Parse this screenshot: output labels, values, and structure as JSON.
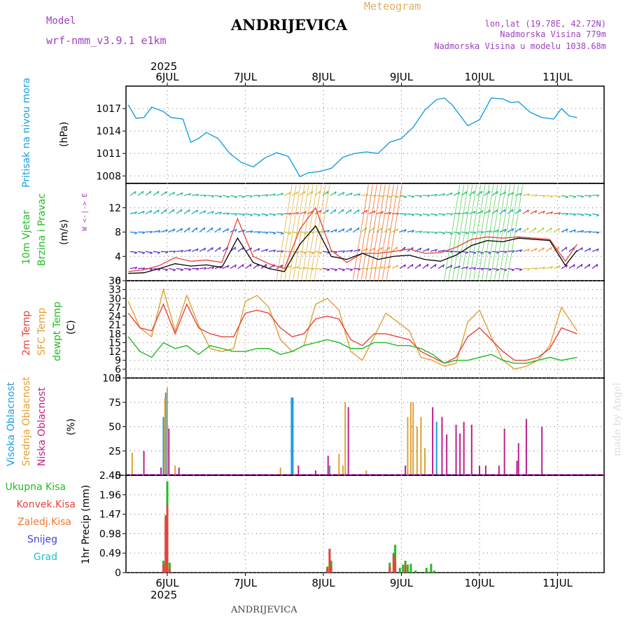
{
  "header": {
    "meteogram_label": "Meteogram",
    "station": "ANDRIJEVICA",
    "model_label": "Model",
    "model_name": "wrf-nmm_v3.9.1  e1km",
    "location_coords": "lon,lat (19.78E, 42.72N)",
    "elevation": "Nadmorska Visina 779m",
    "model_elevation": "Nadmorska Visina u modelu 1038.68m",
    "footer_station": "ANDRIJEVICA",
    "watermark": "made by Angel"
  },
  "time_axis": {
    "year": "2025",
    "day_labels": [
      "6JUL",
      "7JUL",
      "8JUL",
      "9JUL",
      "10JUL",
      "11JUL"
    ]
  },
  "colors": {
    "pressure": "#1a9ee0",
    "wind_speed": "#000000",
    "wind_gust": "#e8433a",
    "temp_2m": "#e8433a",
    "temp_sfc": "#e0a030",
    "temp_dew": "#22bb22",
    "cloud_high": "#1a9ee0",
    "cloud_mid": "#e0a030",
    "cloud_low": "#c0208a",
    "precip_total": "#22bb22",
    "precip_conv": "#e8433a",
    "precip_frozen": "#f07830",
    "precip_snow": "#4040e0",
    "precip_hail": "#20c0c0",
    "wind_label": "#22bb22",
    "wind_label2": "#a040c0"
  },
  "panels": {
    "pressure": {
      "ylabel1": "Pritisak na nivou mora",
      "unit": "(hPa)"
    },
    "wind": {
      "ylabel1": "10m Vjetar",
      "ylabel2": "Brzina i Pravac",
      "unit": "(m/s)",
      "compass": "W <-|-> E"
    },
    "temperature": {
      "ylabel1": "2m Temp",
      "ylabel2": "SFC Temp",
      "ylabel3": "dewpt Temp",
      "unit": "(C)"
    },
    "clouds": {
      "ylabel1": "Visoka Oblacnost",
      "ylabel2": "Srednja Oblacnost",
      "ylabel3": "Niska Oblacnost",
      "unit": "(%)"
    },
    "precip": {
      "unit": "1hr Precip (mm)",
      "legend": [
        "Ukupna Kisa",
        "Konvek.Kisa",
        "Zaledj.Kisa",
        "Snijeg",
        "Grad"
      ]
    }
  },
  "chart_data": [
    {
      "type": "line",
      "title": "",
      "ylabel": "Pritisak na nivou mora (hPa)",
      "yticks": [
        1008,
        1011,
        1014,
        1017
      ],
      "ylim": [
        1007,
        1020
      ],
      "x_days": [
        0,
        0.1,
        0.2,
        0.3,
        0.45,
        0.55,
        0.7,
        0.8,
        0.9,
        1.0,
        1.15,
        1.3,
        1.45,
        1.6,
        1.75,
        1.9,
        2.05,
        2.2,
        2.3,
        2.45,
        2.6,
        2.75,
        2.9,
        3.05,
        3.2,
        3.35,
        3.5,
        3.65,
        3.8,
        3.95,
        4.05,
        4.15,
        4.25,
        4.35,
        4.5,
        4.65,
        4.8,
        4.9,
        5.0,
        5.15,
        5.3,
        5.45,
        5.55,
        5.65,
        5.75
      ],
      "series": [
        {
          "values": [
            1017.5,
            1015.7,
            1015.8,
            1017.2,
            1016.6,
            1015.8,
            1015.6,
            1012.5,
            1013.0,
            1013.8,
            1013.0,
            1011.0,
            1009.8,
            1009.2,
            1010.4,
            1011.1,
            1010.6,
            1007.9,
            1008.4,
            1008.6,
            1009.0,
            1010.5,
            1011.0,
            1011.2,
            1011.0,
            1012.5,
            1013.0,
            1014.5,
            1016.8,
            1018.2,
            1018.4,
            1017.5,
            1016.1,
            1014.7,
            1015.5,
            1018.4,
            1018.3,
            1017.8,
            1017.9,
            1016.5,
            1015.8,
            1015.6,
            1017.0,
            1016.0,
            1015.8
          ]
        }
      ]
    },
    {
      "type": "line",
      "ylabel": "10m Vjetar Brzina i Pravac (m/s)",
      "yticks": [
        0,
        4,
        8,
        12
      ],
      "ylim": [
        0,
        16
      ],
      "x_days": [
        0,
        0.2,
        0.4,
        0.6,
        0.8,
        1.0,
        1.2,
        1.4,
        1.6,
        1.8,
        2.0,
        2.2,
        2.4,
        2.6,
        2.8,
        3.0,
        3.2,
        3.4,
        3.6,
        3.8,
        4.0,
        4.2,
        4.4,
        4.6,
        4.8,
        5.0,
        5.2,
        5.4,
        5.6,
        5.75
      ],
      "series": [
        {
          "name": "speed",
          "values": [
            1.2,
            1.3,
            2.0,
            2.8,
            2.4,
            2.6,
            2.2,
            7.0,
            3.0,
            2.0,
            1.5,
            6.0,
            9.0,
            4.0,
            3.5,
            4.5,
            3.5,
            4.0,
            4.2,
            3.5,
            3.2,
            4.2,
            5.8,
            6.6,
            6.4,
            7.0,
            6.8,
            6.6,
            2.5,
            5.0
          ]
        },
        {
          "name": "gust",
          "values": [
            1.5,
            1.8,
            2.5,
            3.8,
            3.2,
            3.4,
            3.0,
            10.2,
            4.0,
            2.8,
            2.0,
            8.5,
            12.0,
            5.0,
            3.0,
            4.5,
            4.5,
            4.8,
            5.2,
            4.5,
            4.6,
            5.5,
            6.8,
            7.2,
            7.0,
            7.2,
            7.0,
            6.8,
            3.2,
            6.0
          ]
        }
      ]
    },
    {
      "type": "line",
      "ylabel": "Temperature (C)",
      "yticks": [
        3,
        6,
        9,
        12,
        15,
        18,
        21,
        24,
        27,
        30,
        33,
        36
      ],
      "ylim": [
        3,
        36
      ],
      "x_days": [
        0,
        0.15,
        0.3,
        0.45,
        0.6,
        0.75,
        0.9,
        1.05,
        1.2,
        1.35,
        1.5,
        1.65,
        1.8,
        1.95,
        2.1,
        2.25,
        2.4,
        2.55,
        2.7,
        2.85,
        3.0,
        3.15,
        3.3,
        3.45,
        3.6,
        3.75,
        3.9,
        4.05,
        4.2,
        4.35,
        4.5,
        4.65,
        4.8,
        4.95,
        5.1,
        5.25,
        5.4,
        5.55,
        5.75
      ],
      "series": [
        {
          "name": "2m",
          "values": [
            25,
            20,
            19,
            28,
            18,
            28,
            20,
            18,
            17,
            17,
            25,
            26,
            25,
            20,
            17,
            18,
            23,
            24,
            23,
            16,
            14,
            18,
            18,
            17,
            16,
            12,
            10,
            8,
            10,
            17,
            20,
            16,
            12,
            9,
            9,
            10,
            13,
            20,
            18
          ]
        },
        {
          "name": "sfc",
          "values": [
            29,
            20,
            17,
            33,
            19,
            31,
            21,
            13,
            12,
            13,
            29,
            31,
            27,
            16,
            12,
            14,
            28,
            30,
            26,
            12,
            9,
            17,
            25,
            22,
            19,
            10,
            9,
            7,
            8,
            22,
            26,
            17,
            9,
            6,
            7,
            9,
            14,
            27,
            19
          ]
        },
        {
          "name": "dew",
          "values": [
            17,
            12,
            10,
            15,
            13,
            14,
            11,
            14,
            13,
            12,
            12,
            13,
            13,
            11,
            12,
            14,
            15,
            16,
            15,
            13,
            13,
            15,
            15,
            14,
            14,
            13,
            11,
            8,
            9,
            9,
            10,
            11,
            9,
            8,
            8,
            9,
            10,
            9,
            10
          ]
        }
      ]
    },
    {
      "type": "bar",
      "ylabel": "Oblacnost (%)",
      "yticks": [
        0,
        25,
        50,
        75,
        100
      ],
      "ylim": [
        0,
        100
      ],
      "series": [
        {
          "name": "high",
          "points": [
            [
              0.45,
              60
            ],
            [
              0.48,
              85
            ],
            [
              0.5,
              82
            ],
            [
              2.1,
              80
            ],
            [
              2.58,
              10
            ],
            [
              3.95,
              55
            ]
          ]
        },
        {
          "name": "mid",
          "points": [
            [
              0.05,
              23
            ],
            [
              0.47,
              80
            ],
            [
              0.5,
              90
            ],
            [
              0.6,
              10
            ],
            [
              1.95,
              8
            ],
            [
              2.75,
              10
            ],
            [
              2.7,
              22
            ],
            [
              2.78,
              75
            ],
            [
              3.05,
              5
            ],
            [
              3.58,
              60
            ],
            [
              3.62,
              75
            ],
            [
              3.65,
              75
            ],
            [
              3.7,
              50
            ],
            [
              3.75,
              60
            ],
            [
              3.8,
              28
            ]
          ]
        },
        {
          "name": "low",
          "points": [
            [
              0.2,
              25
            ],
            [
              0.42,
              8
            ],
            [
              0.52,
              48
            ],
            [
              0.65,
              8
            ],
            [
              2.18,
              10
            ],
            [
              2.4,
              5
            ],
            [
              2.56,
              20
            ],
            [
              2.82,
              70
            ],
            [
              3.55,
              10
            ],
            [
              3.9,
              70
            ],
            [
              4.02,
              60
            ],
            [
              4.08,
              42
            ],
            [
              4.2,
              52
            ],
            [
              4.25,
              43
            ],
            [
              4.3,
              55
            ],
            [
              4.4,
              52
            ],
            [
              4.5,
              10
            ],
            [
              4.58,
              10
            ],
            [
              4.75,
              10
            ],
            [
              4.82,
              48
            ],
            [
              4.98,
              15
            ],
            [
              5.0,
              33
            ],
            [
              5.1,
              58
            ],
            [
              5.3,
              50
            ]
          ]
        }
      ]
    },
    {
      "type": "bar",
      "ylabel": "1hr Precip (mm)",
      "yticks": [
        0,
        0.49,
        0.98,
        1.47,
        1.96,
        2.45
      ],
      "ylim": [
        0,
        2.45
      ],
      "series": [
        {
          "name": "total",
          "points": [
            [
              0.45,
              0.3
            ],
            [
              0.48,
              1.45
            ],
            [
              0.5,
              2.3
            ],
            [
              0.53,
              0.25
            ],
            [
              2.55,
              0.15
            ],
            [
              2.58,
              0.6
            ],
            [
              2.6,
              0.3
            ],
            [
              3.35,
              0.25
            ],
            [
              3.4,
              0.5
            ],
            [
              3.42,
              0.7
            ],
            [
              3.48,
              0.12
            ],
            [
              3.52,
              0.2
            ],
            [
              3.55,
              0.3
            ],
            [
              3.58,
              0.2
            ],
            [
              3.62,
              0.22
            ],
            [
              3.68,
              0.05
            ],
            [
              3.82,
              0.12
            ],
            [
              3.88,
              0.22
            ],
            [
              3.92,
              0.05
            ]
          ]
        },
        {
          "name": "conv",
          "points": [
            [
              0.45,
              0.2
            ],
            [
              0.48,
              1.4
            ],
            [
              0.5,
              1.7
            ],
            [
              0.53,
              0.1
            ],
            [
              2.55,
              0.1
            ],
            [
              2.58,
              0.6
            ],
            [
              2.6,
              0.15
            ],
            [
              3.35,
              0.15
            ],
            [
              3.4,
              0.45
            ],
            [
              3.42,
              0.3
            ],
            [
              3.55,
              0.2
            ]
          ]
        }
      ]
    }
  ]
}
